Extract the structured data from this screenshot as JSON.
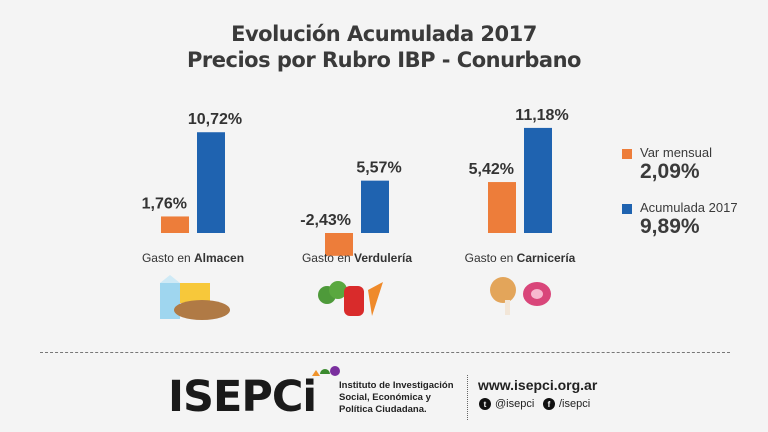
{
  "title_line1": "Evolución Acumulada 2017",
  "title_line2": "Precios por Rubro IBP - Conurbano",
  "chart_data": {
    "type": "bar",
    "categories": [
      {
        "prefix": "Gasto en ",
        "bold": "Almacen"
      },
      {
        "prefix": "Gasto en ",
        "bold": "Verdulería"
      },
      {
        "prefix": "Gasto en ",
        "bold": "Carnicería"
      }
    ],
    "series": [
      {
        "name": "Var mensual",
        "color": "#ed7d3a",
        "values": [
          1.76,
          -2.43,
          5.42
        ],
        "labels": [
          "1,76%",
          "-2,43%",
          "5,42%"
        ]
      },
      {
        "name": "Acumulada 2017",
        "color": "#1f63b0",
        "values": [
          10.72,
          5.57,
          11.18
        ],
        "labels": [
          "10,72%",
          "5,57%",
          "11,18%"
        ]
      }
    ]
  },
  "legend": [
    {
      "label": "Var mensual",
      "value": "2,09%",
      "color": "#ed7d3a"
    },
    {
      "label": "Acumulada 2017",
      "value": "9,89%",
      "color": "#1f63b0"
    }
  ],
  "footer": {
    "logo": "ISEPCi",
    "institute": [
      "Instituto de Investigación",
      "Social, Económica y",
      "Política Ciudadana."
    ],
    "website": "www.isepci.org.ar",
    "twitter": "@isepci",
    "facebook": "/isepci"
  }
}
